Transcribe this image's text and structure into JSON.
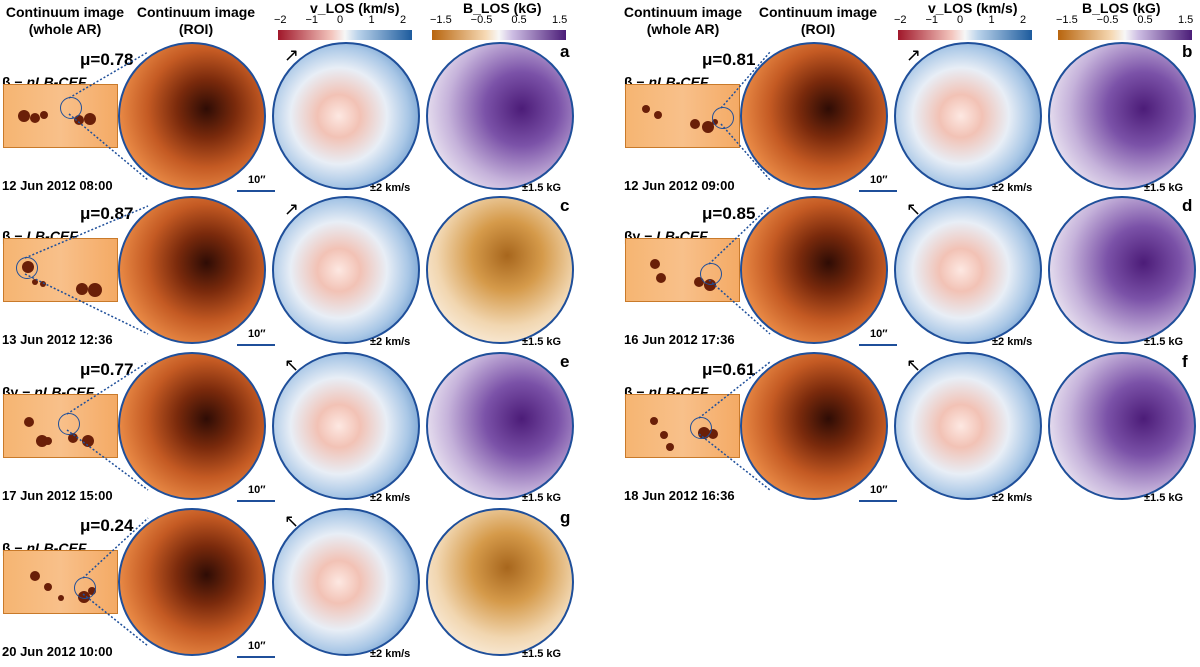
{
  "headers": {
    "cont_whole": "Continuum image\n(whole AR)",
    "cont_roi": "Continuum image\n(ROI)",
    "vlos_title": "v_LOS (km/s)",
    "blos_title": "B_LOS (kG)",
    "vlos_ticks": [
      "−2",
      "−1",
      "0",
      "1",
      "2"
    ],
    "blos_ticks": [
      "−1.5",
      "−0.5",
      "0.5",
      "1.5"
    ]
  },
  "colors": {
    "ring": "#1f4f9a",
    "red": "#a0172a",
    "blue": "#1d5b9d",
    "orange": "#b8650e",
    "purple": "#4b1d78"
  },
  "panels": [
    {
      "letter": "a",
      "mu": "μ=0.78",
      "cls_prefix": "β − ",
      "cls_name": "nLB-CEF",
      "date": "12 Jun 2012 08:00",
      "scale": "10″",
      "vlos_range": "±2 km/s",
      "blos_range": "±1.5 kG",
      "arrow": "↗",
      "blos_sign": "pos"
    },
    {
      "letter": "c",
      "mu": "μ=0.87",
      "cls_prefix": "β − ",
      "cls_name": "LB-CEF",
      "date": "13 Jun 2012 12:36",
      "scale": "10″",
      "vlos_range": "±2 km/s",
      "blos_range": "±1.5 kG",
      "arrow": "↗",
      "blos_sign": "neg"
    },
    {
      "letter": "e",
      "mu": "μ=0.77",
      "cls_prefix": "βγ − ",
      "cls_name": "nLB-CEF",
      "date": "17 Jun 2012 15:00",
      "scale": "10″",
      "vlos_range": "±2 km/s",
      "blos_range": "±1.5 kG",
      "arrow": "↖",
      "blos_sign": "pos"
    },
    {
      "letter": "g",
      "mu": "μ=0.24",
      "cls_prefix": "β − ",
      "cls_name": "nLB-CEF",
      "date": "20 Jun 2012 10:00",
      "scale": "10″",
      "vlos_range": "±2 km/s",
      "blos_range": "±1.5 kG",
      "arrow": "↖",
      "blos_sign": "neg"
    },
    {
      "letter": "b",
      "mu": "μ=0.81",
      "cls_prefix": "β − ",
      "cls_name": "nLB-CEF",
      "date": "12 Jun 2012 09:00",
      "scale": "10″",
      "vlos_range": "±2 km/s",
      "blos_range": "±1.5 kG",
      "arrow": "↗",
      "blos_sign": "pos"
    },
    {
      "letter": "d",
      "mu": "μ=0.85",
      "cls_prefix": "βγ − ",
      "cls_name": "LB-CEF",
      "date": "16 Jun 2012 17:36",
      "scale": "10″",
      "vlos_range": "±2 km/s",
      "blos_range": "±1.5 kG",
      "arrow": "↖",
      "blos_sign": "pos"
    },
    {
      "letter": "f",
      "mu": "μ=0.61",
      "cls_prefix": "β − ",
      "cls_name": "nLB-CEF",
      "date": "18 Jun 2012 16:36",
      "scale": "10″",
      "vlos_range": "±2 km/s",
      "blos_range": "±1.5 kG",
      "arrow": "↖",
      "blos_sign": "pos"
    }
  ]
}
